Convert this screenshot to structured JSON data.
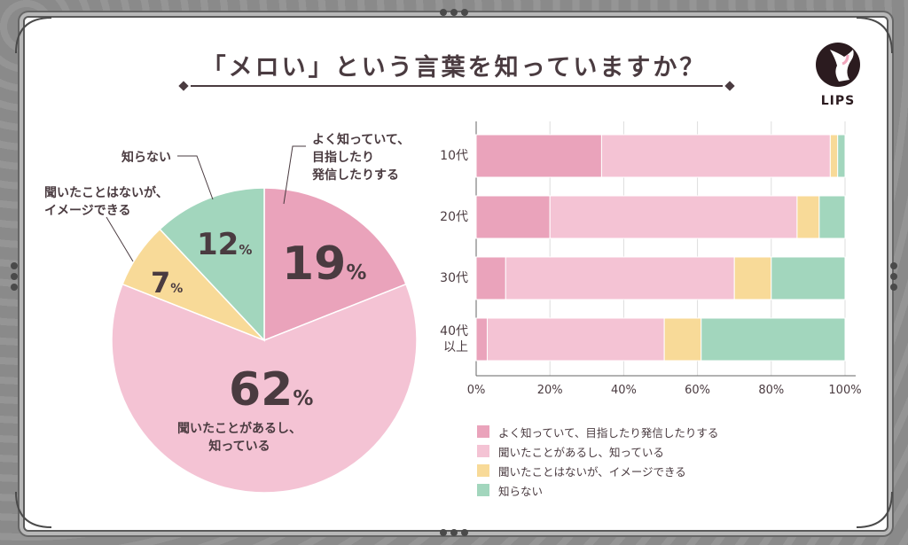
{
  "title": "「メロい」という言葉を知っていますか？",
  "logo": {
    "text": "LIPS",
    "icon": "deer-head-icon"
  },
  "colors": {
    "know_well": "#eaa3bb",
    "heard_know": "#f4c3d4",
    "heard_imagine": "#f8da98",
    "dont_know": "#a2d6bd",
    "text": "#4a3b40"
  },
  "chart_data": [
    {
      "type": "pie",
      "categories": [
        "よく知っていて、目指したり発信したりする",
        "聞いたことがあるし、知っている",
        "聞いたことはないが、イメージできる",
        "知らない"
      ],
      "values": [
        19,
        62,
        7,
        12
      ],
      "value_labels": [
        "19",
        "62",
        "7",
        "12"
      ],
      "unit": "%",
      "slice_labels": [
        "よく知っていて、\n目指したり\n発信したりする",
        "聞いたことがあるし、\n知っている",
        "聞いたことはないが、\nイメージできる",
        "知らない"
      ]
    },
    {
      "type": "bar",
      "orientation": "horizontal",
      "stacked": true,
      "categories": [
        "10代",
        "20代",
        "30代",
        "40代\n以上"
      ],
      "series": [
        {
          "name": "よく知っていて、目指したり発信したりする",
          "values": [
            34,
            20,
            8,
            3
          ]
        },
        {
          "name": "聞いたことがあるし、知っている",
          "values": [
            62,
            67,
            62,
            48
          ]
        },
        {
          "name": "聞いたことはないが、イメージできる",
          "values": [
            2,
            6,
            10,
            10
          ]
        },
        {
          "name": "知らない",
          "values": [
            2,
            7,
            20,
            39
          ]
        }
      ],
      "xlim": [
        0,
        100
      ],
      "xticks": [
        "0%",
        "20%",
        "40%",
        "60%",
        "80%",
        "100%"
      ],
      "grid": true,
      "legend": "bottom"
    }
  ]
}
